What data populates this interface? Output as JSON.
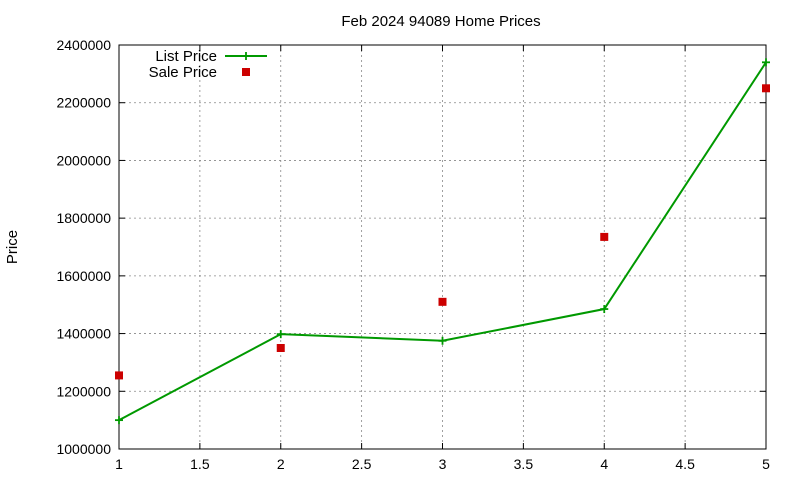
{
  "chart_data": {
    "type": "line",
    "title": "Feb 2024 94089 Home Prices",
    "xlabel": "",
    "ylabel": "Price",
    "xlim": [
      1,
      5
    ],
    "ylim": [
      1000000,
      2400000
    ],
    "x_ticks": [
      "1",
      "1.5",
      "2",
      "2.5",
      "3",
      "3.5",
      "4",
      "4.5",
      "5"
    ],
    "x_tick_values": [
      1,
      1.5,
      2,
      2.5,
      3,
      3.5,
      4,
      4.5,
      5
    ],
    "y_ticks": [
      "1000000",
      "1200000",
      "1400000",
      "1600000",
      "1800000",
      "2000000",
      "2200000",
      "2400000"
    ],
    "y_tick_values": [
      1000000,
      1200000,
      1400000,
      1600000,
      1800000,
      2000000,
      2200000,
      2400000
    ],
    "grid": true,
    "legend_position": "top-left",
    "series": [
      {
        "name": "List Price",
        "style": "line-with-plus-markers",
        "color": "#009900",
        "x": [
          1,
          2,
          3,
          4,
          5
        ],
        "values": [
          1100000,
          1398000,
          1375000,
          1485000,
          2340000
        ]
      },
      {
        "name": "Sale Price",
        "style": "square-markers",
        "color": "#cc0000",
        "x": [
          1,
          2,
          3,
          4,
          5
        ],
        "values": [
          1255000,
          1350000,
          1510000,
          1735000,
          2250000
        ]
      }
    ]
  }
}
